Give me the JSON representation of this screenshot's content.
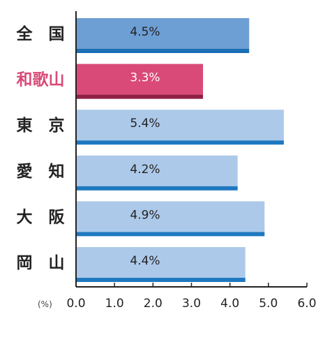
{
  "chart_data": {
    "type": "bar",
    "orientation": "horizontal",
    "categories": [
      "全　国",
      "和歌山",
      "東　京",
      "愛　知",
      "大　阪",
      "岡　山"
    ],
    "values": [
      4.5,
      3.3,
      5.4,
      4.2,
      4.9,
      4.4
    ],
    "value_labels": [
      "4.5%",
      "3.3%",
      "5.4%",
      "4.2%",
      "4.9%",
      "4.4%"
    ],
    "xlim": [
      0,
      6.0
    ],
    "xticks": [
      "0.0",
      "1.0",
      "2.0",
      "3.0",
      "4.0",
      "5.0",
      "6.0"
    ],
    "unit_label": "(%)",
    "grid": false,
    "highlight": "和歌山",
    "colors": {
      "national": "#6d9ed4",
      "national_edge": "#1a6fb5",
      "highlight": "#d94a78",
      "highlight_edge": "#8f1f45",
      "default": "#adc9ea",
      "default_edge": "#1e78c0",
      "highlight_text": "#d94a78",
      "text": "#222222"
    }
  }
}
